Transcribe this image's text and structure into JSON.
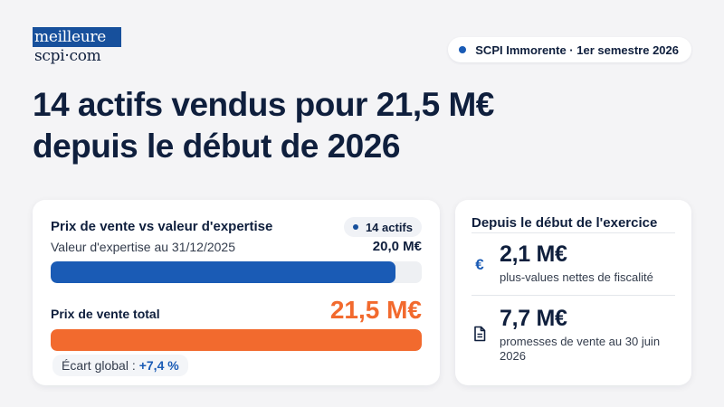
{
  "logo": {
    "top": "meilleure",
    "bottom": "scpi·com"
  },
  "tag": {
    "text": "SCPI Immorente · 1er semestre 2026",
    "dot_color": "#1a5bb5"
  },
  "headline": {
    "line1": "14 actifs vendus pour 21,5 M€",
    "line2": "depuis le début de 2026"
  },
  "chart_data": {
    "type": "bar",
    "title": "Prix de vente vs valeur d'expertise",
    "count_badge": "14 actifs",
    "unit": "M€",
    "categories": [
      "Valeur d'expertise au 31/12/2025",
      "Prix de vente total"
    ],
    "values": [
      20.0,
      21.5
    ],
    "value_labels": [
      "20,0 M€",
      "21,5 M€"
    ],
    "xlim": [
      0,
      21.5
    ],
    "colors": [
      "#1a5bb5",
      "#f26a2e"
    ],
    "gap": {
      "label": "Écart global :",
      "value": "+7,4 %"
    }
  },
  "stats": {
    "title": "Depuis le début de l'exercice",
    "items": [
      {
        "icon": "euro-icon",
        "glyph": "€",
        "value": "2,1 M€",
        "description": "plus-values nettes de fiscalité"
      },
      {
        "icon": "document-icon",
        "value": "7,7 M€",
        "description": "promesses de vente au 30 juin 2026"
      }
    ]
  },
  "colors": {
    "navy": "#0f1f3d",
    "blue": "#1a5bb5",
    "orange": "#f26a2e",
    "background": "#f4f4f6"
  }
}
